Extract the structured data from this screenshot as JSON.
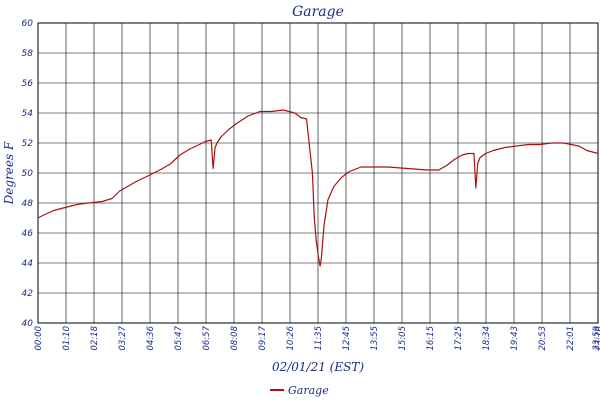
{
  "chart_data": {
    "type": "line",
    "title": "Garage",
    "xlabel": "02/01/21 (EST)",
    "ylabel": "Degrees F",
    "ylim": [
      40,
      60
    ],
    "yticks": [
      "40",
      "42",
      "44",
      "46",
      "48",
      "50",
      "52",
      "54",
      "56",
      "58",
      "60"
    ],
    "xlim_minutes": [
      0,
      1439
    ],
    "xticks": [
      "00:00",
      "01:10",
      "02:18",
      "03:27",
      "04:36",
      "05:47",
      "06:57",
      "08:08",
      "09:17",
      "10:26",
      "11:35",
      "12:45",
      "13:55",
      "15:05",
      "16:15",
      "17:25",
      "18:34",
      "19:43",
      "20:53",
      "22:01",
      "23:10",
      "23:59"
    ],
    "grid": true,
    "legend_position": "bottom",
    "colors": {
      "series": "#aa1111",
      "text": "#1a2b8c",
      "grid": "#000000"
    },
    "series": [
      {
        "name": "Garage",
        "x_minutes": [
          0,
          15,
          40,
          70,
          100,
          130,
          165,
          190,
          210,
          250,
          290,
          320,
          340,
          365,
          390,
          415,
          430,
          445,
          450,
          455,
          460,
          470,
          490,
          510,
          540,
          570,
          600,
          630,
          660,
          675,
          690,
          705,
          710,
          715,
          720,
          725,
          728,
          735,
          745,
          760,
          780,
          800,
          830,
          860,
          900,
          950,
          1000,
          1030,
          1050,
          1070,
          1090,
          1105,
          1115,
          1120,
          1125,
          1130,
          1135,
          1150,
          1170,
          1200,
          1230,
          1260,
          1290,
          1320,
          1350,
          1370,
          1390,
          1410,
          1425,
          1439
        ],
        "values": [
          47.0,
          47.2,
          47.5,
          47.7,
          47.9,
          48.0,
          48.1,
          48.3,
          48.8,
          49.4,
          49.9,
          50.3,
          50.6,
          51.2,
          51.6,
          51.9,
          52.1,
          52.2,
          50.3,
          51.7,
          52.0,
          52.4,
          52.9,
          53.3,
          53.8,
          54.1,
          54.1,
          54.2,
          54.0,
          53.7,
          53.6,
          50.0,
          47.0,
          45.5,
          44.5,
          43.8,
          44.3,
          46.5,
          48.2,
          49.1,
          49.7,
          50.1,
          50.4,
          50.4,
          50.4,
          50.3,
          50.2,
          50.2,
          50.5,
          50.9,
          51.2,
          51.3,
          51.3,
          51.3,
          49.0,
          50.6,
          51.0,
          51.3,
          51.5,
          51.7,
          51.8,
          51.9,
          51.9,
          52.0,
          52.0,
          51.9,
          51.8,
          51.5,
          51.4,
          51.3
        ]
      }
    ]
  }
}
